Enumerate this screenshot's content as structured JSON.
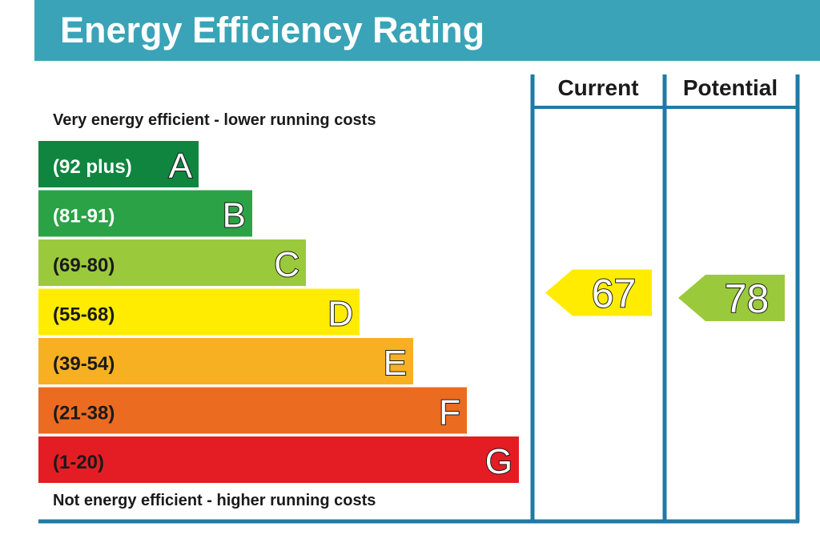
{
  "title": "Energy Efficiency Rating",
  "header": {
    "efficient_note": "Very energy efficient - lower running costs",
    "inefficient_note": "Not energy efficient - higher running costs",
    "current_label": "Current",
    "potential_label": "Potential"
  },
  "colors": {
    "title_bar": "#3aa3b7",
    "frame": "#1f7aa6",
    "A": "#0f8540",
    "B": "#2ba246",
    "C": "#9bc93c",
    "D": "#ffec00",
    "E": "#f6b021",
    "F": "#eb6b21",
    "G": "#e31d23"
  },
  "chart_data": {
    "type": "bar",
    "bands": [
      {
        "letter": "A",
        "range": "(92 plus)",
        "min": 92,
        "max": 100
      },
      {
        "letter": "B",
        "range": "(81-91)",
        "min": 81,
        "max": 91
      },
      {
        "letter": "C",
        "range": "(69-80)",
        "min": 69,
        "max": 80
      },
      {
        "letter": "D",
        "range": "(55-68)",
        "min": 55,
        "max": 68
      },
      {
        "letter": "E",
        "range": "(39-54)",
        "min": 39,
        "max": 54
      },
      {
        "letter": "F",
        "range": "(21-38)",
        "min": 21,
        "max": 38
      },
      {
        "letter": "G",
        "range": "(1-20)",
        "min": 1,
        "max": 20
      }
    ],
    "current": {
      "value": 67,
      "label": "67",
      "band": "D"
    },
    "potential": {
      "value": 78,
      "label": "78",
      "band": "C"
    }
  }
}
